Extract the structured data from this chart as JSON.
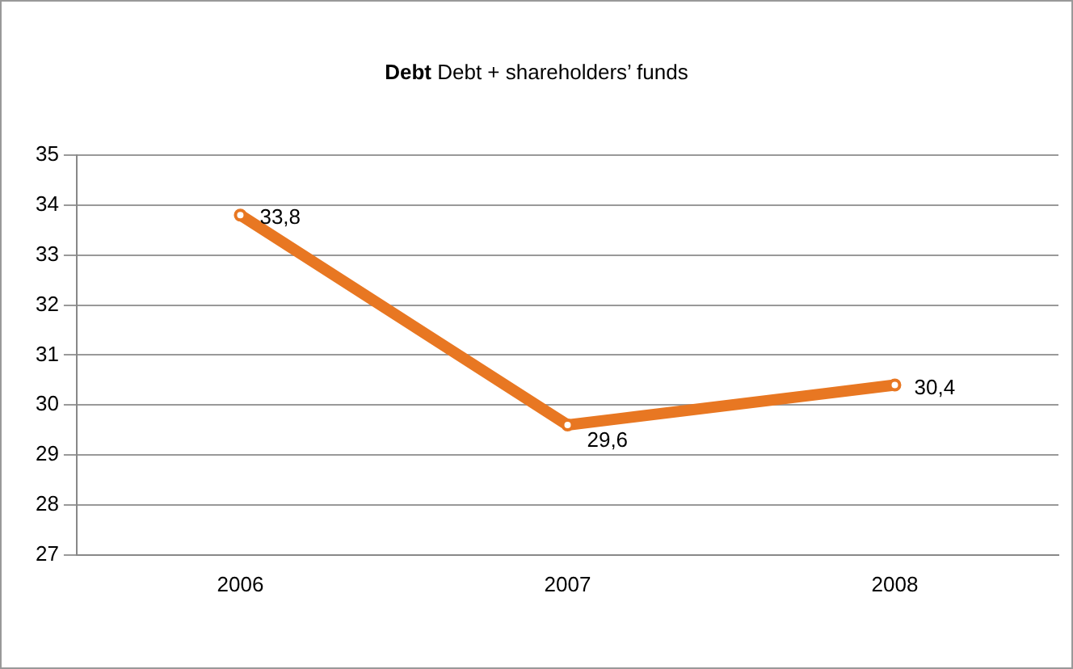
{
  "chart_data": {
    "type": "line",
    "title": "Debt  Debt + shareholders’ funds",
    "categories": [
      "2006",
      "2007",
      "2008"
    ],
    "series": [
      {
        "color": "#e87722",
        "values": [
          33.8,
          29.6,
          30.4
        ],
        "value_labels": [
          "33,8",
          "29,6",
          "30,4"
        ]
      }
    ],
    "ylim": [
      27,
      35
    ],
    "yticks": [
      27,
      28,
      29,
      30,
      31,
      32,
      33,
      34,
      35
    ],
    "grid": "y",
    "legend": false,
    "marker": "circle",
    "line_style": "solid"
  }
}
